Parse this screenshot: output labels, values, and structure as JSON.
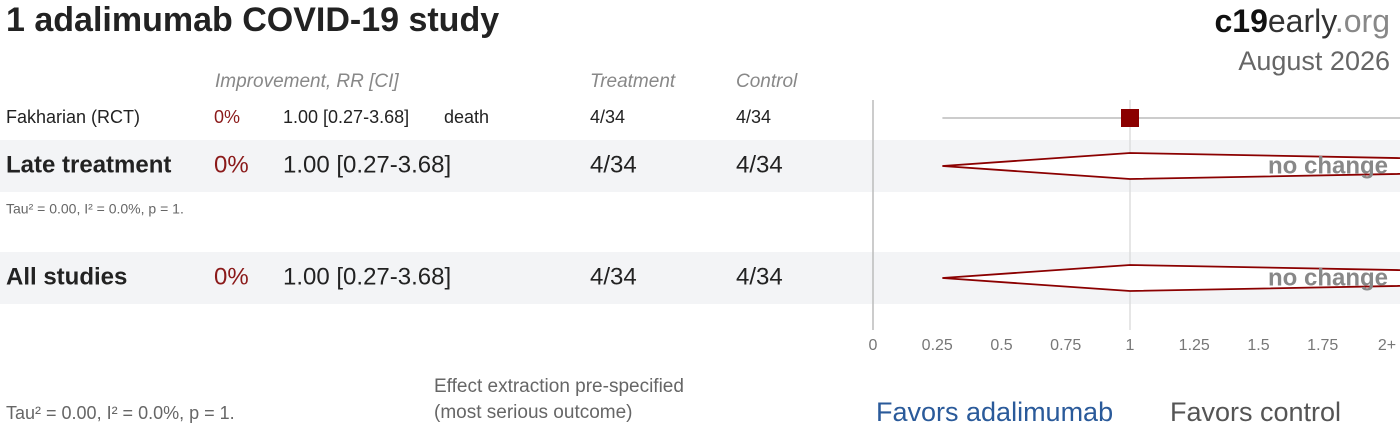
{
  "chart_data": {
    "type": "forest",
    "title": "1 adalimumab COVID-19 study",
    "brand": [
      "c19",
      "early",
      ".org"
    ],
    "date": "August 2026",
    "columns": [
      "Improvement, RR [CI]",
      "Treatment",
      "Control"
    ],
    "studies": [
      {
        "label": "Fakharian (RCT)",
        "improvement": "0%",
        "rr": 1.0,
        "ci": [
          0.27,
          3.68
        ],
        "rr_label": "1.00 [0.27-3.68]",
        "outcome": "death",
        "treatment": "4/34",
        "control": "4/34"
      }
    ],
    "subtotals": [
      {
        "label": "Late treatment",
        "improvement": "0%",
        "rr": 1.0,
        "ci": [
          0.27,
          3.68
        ],
        "rr_label": "1.00 [0.27-3.68]",
        "treatment": "4/34",
        "control": "4/34",
        "effect": "no change",
        "heterogeneity": "Tau² = 0.00, I² = 0.0%, p = 1."
      },
      {
        "label": "All studies",
        "improvement": "0%",
        "rr": 1.0,
        "ci": [
          0.27,
          3.68
        ],
        "rr_label": "1.00 [0.27-3.68]",
        "treatment": "4/34",
        "control": "4/34",
        "effect": "no change",
        "heterogeneity": "Tau² = 0.00, I² = 0.0%, p = 1."
      }
    ],
    "xlim": [
      0,
      2
    ],
    "xticks": [
      0,
      0.25,
      0.5,
      0.75,
      1,
      1.25,
      1.5,
      1.75,
      {
        "value": 2,
        "label": "2+"
      }
    ],
    "color": "#8b0000",
    "note": [
      "Effect extraction pre-specified",
      "(most serious outcome)"
    ],
    "favors": [
      "Favors adalimumab",
      "Favors control"
    ]
  }
}
